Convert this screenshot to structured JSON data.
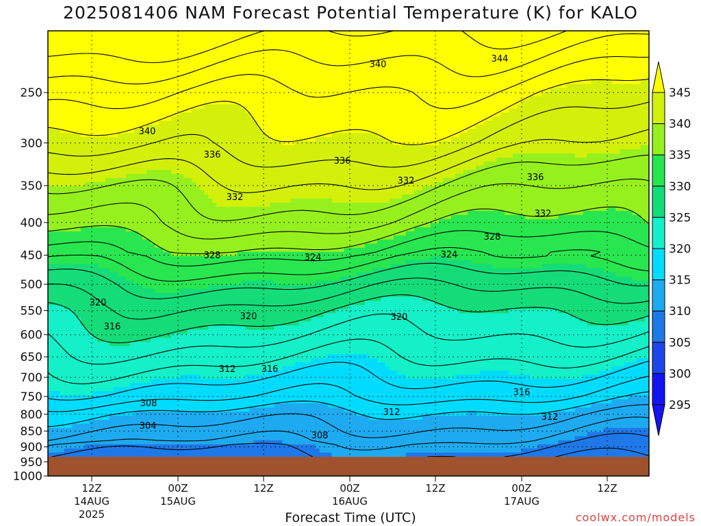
{
  "title": "2025081406 NAM Forecast Potential Temperature (K) for KALO",
  "xlabel": "Forecast Time (UTC)",
  "credit": "coolwx.com/models",
  "colors": {
    "ground": "#a0522d",
    "band_colors": [
      "#1414f0",
      "#1e46ea",
      "#1f78e8",
      "#1eaaf0",
      "#00dcff",
      "#14f0c8",
      "#14dc78",
      "#28e650",
      "#96f01e",
      "#d2f00a",
      "#ffff00"
    ]
  },
  "chart_data": {
    "type": "contour",
    "y_axis": {
      "label": "",
      "scale": "log-pressure",
      "range_hPa": [
        200,
        1000
      ],
      "ticks": [
        250,
        300,
        350,
        400,
        450,
        500,
        550,
        600,
        650,
        700,
        750,
        800,
        850,
        900,
        950,
        1000
      ]
    },
    "x_axis": {
      "ticks": [
        {
          "line1": "12Z",
          "line2": "14AUG",
          "line3": "2025"
        },
        {
          "line1": "00Z",
          "line2": "15AUG",
          "line3": ""
        },
        {
          "line1": "12Z",
          "line2": "",
          "line3": ""
        },
        {
          "line1": "00Z",
          "line2": "16AUG",
          "line3": ""
        },
        {
          "line1": "12Z",
          "line2": "",
          "line3": ""
        },
        {
          "line1": "00Z",
          "line2": "17AUG",
          "line3": ""
        },
        {
          "line1": "12Z",
          "line2": "",
          "line3": ""
        }
      ]
    },
    "colorbar": {
      "levels": [
        295,
        300,
        305,
        310,
        315,
        320,
        325,
        330,
        335,
        340,
        345
      ],
      "extends": "both"
    },
    "contour_interval_K": 2,
    "contour_labels": [
      "344",
      "340",
      "340",
      "336",
      "336",
      "336",
      "332",
      "332",
      "332",
      "328",
      "328",
      "324",
      "324",
      "320",
      "320",
      "320",
      "316",
      "316",
      "316",
      "312",
      "312",
      "312",
      "308",
      "308",
      "304"
    ],
    "contour_levels_K": [
      300,
      302,
      304,
      306,
      308,
      310,
      312,
      314,
      316,
      318,
      320,
      322,
      324,
      326,
      328,
      330,
      332,
      334,
      336,
      338,
      340,
      342,
      344,
      346
    ],
    "theta_profile": {
      "pressure_hPa": [
        1000,
        970,
        950,
        900,
        850,
        800,
        750,
        700,
        650,
        600,
        550,
        500,
        450,
        400,
        350,
        300,
        250,
        200
      ],
      "theta_K": [
        297,
        301,
        303,
        305,
        307,
        309,
        312,
        314,
        316,
        318,
        320,
        323,
        327,
        331,
        334,
        338,
        341,
        346
      ]
    }
  }
}
